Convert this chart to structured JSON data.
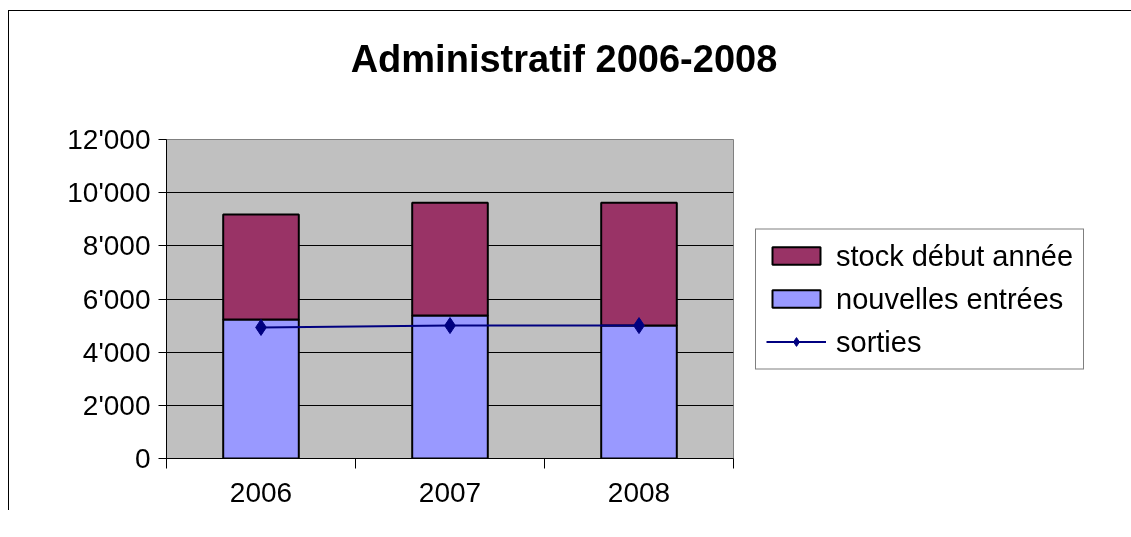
{
  "chart_data": {
    "type": "bar",
    "title": "Administratif 2006-2008",
    "categories": [
      "2006",
      "2007",
      "2008"
    ],
    "stacked": true,
    "series": [
      {
        "name": "nouvelles entrées",
        "color": "#9999ff",
        "values": [
          5230,
          5380,
          5000
        ]
      },
      {
        "name": "stock début année",
        "color": "#993366",
        "values": [
          3950,
          4240,
          4620
        ]
      },
      {
        "name": "sorties",
        "type": "line",
        "color": "#000080",
        "values": [
          4930,
          5000,
          5000
        ]
      }
    ],
    "ylim": [
      0,
      12000
    ],
    "yticks": [
      0,
      {
        "value": 2000,
        "label": "2'000"
      },
      {
        "value": 4000,
        "label": "4'000"
      },
      {
        "value": 6000,
        "label": "6'000"
      },
      {
        "value": 8000,
        "label": "8'000"
      },
      {
        "value": 10000,
        "label": "10'000"
      },
      {
        "value": 12000,
        "label": "12'000"
      }
    ],
    "grid": "y",
    "legend": "right",
    "marker": "diamond"
  }
}
